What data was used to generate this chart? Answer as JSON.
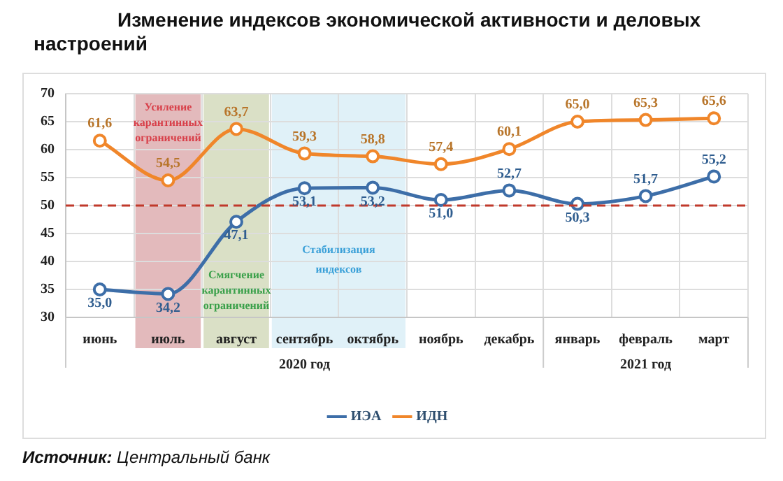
{
  "chart_data": {
    "type": "line",
    "title": "Изменение индексов экономической активности и деловых настроений",
    "categories": [
      "июнь",
      "июль",
      "август",
      "сентябрь",
      "октябрь",
      "ноябрь",
      "декабрь",
      "январь",
      "февраль",
      "март"
    ],
    "series": [
      {
        "name": "ИЭА",
        "color": "#3d6ea8",
        "values": [
          35.0,
          34.2,
          47.1,
          53.1,
          53.2,
          51.0,
          52.7,
          50.3,
          51.7,
          55.2
        ],
        "value_labels": [
          "35,0",
          "34,2",
          "47,1",
          "53,1",
          "53,2",
          "51,0",
          "52,7",
          "50,3",
          "51,7",
          "55,2"
        ]
      },
      {
        "name": "ИДН",
        "color": "#f0862a",
        "values": [
          61.6,
          54.5,
          63.7,
          59.3,
          58.8,
          57.4,
          60.1,
          65.0,
          65.3,
          65.6
        ],
        "value_labels": [
          "61,6",
          "54,5",
          "63,7",
          "59,3",
          "58,8",
          "57,4",
          "60,1",
          "65,0",
          "65,3",
          "65,6"
        ]
      }
    ],
    "ylim": [
      30,
      70
    ],
    "yticks": [
      30,
      35,
      40,
      45,
      50,
      55,
      60,
      65,
      70
    ],
    "grid": true,
    "legend": "bottom",
    "marker": "circle",
    "ref_lines": [
      {
        "axis": "y",
        "value": 50,
        "color": "#c0392b",
        "line_style": "dashed"
      }
    ],
    "bands": [
      {
        "axis": "x",
        "from": "июль",
        "to": "июль",
        "label": "Усиление карантинных ограничений",
        "color": "#d9a3a6"
      },
      {
        "axis": "x",
        "from": "август",
        "to": "август",
        "label": "Смягчение карантинных ограничений",
        "color": "#cdd5b3"
      },
      {
        "axis": "x",
        "from": "сентябрь",
        "to": "октябрь",
        "label": "Стабилизация индексов",
        "color": "#d6ecf5"
      }
    ],
    "annotations": [
      "2020 год",
      "2021 год",
      "Источник: Центральный банк"
    ]
  }
}
